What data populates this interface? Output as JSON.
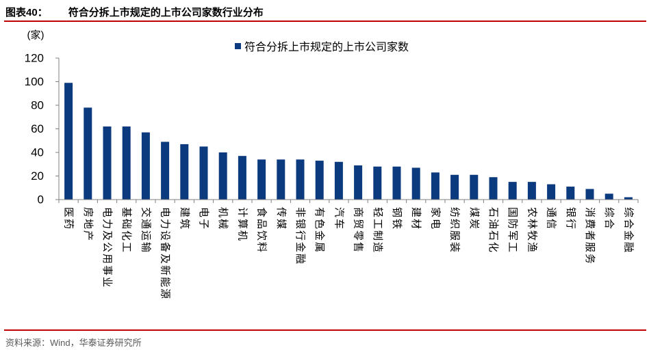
{
  "header": {
    "figure_label": "图表40：",
    "title": "符合分拆上市规定的上市公司家数行业分布"
  },
  "footer": {
    "source": "资料来源：Wind，华泰证券研究所"
  },
  "colors": {
    "bar": "#0b3a7e",
    "rule": "#c00000",
    "axis": "#7f7f7f",
    "source_text": "#595959"
  },
  "chart_data": {
    "type": "bar",
    "ylabel": "(家)",
    "xlabel": "",
    "ylim": [
      0,
      120
    ],
    "yticks": [
      0,
      20,
      40,
      60,
      80,
      100,
      120
    ],
    "grid": false,
    "legend_position": "top-center",
    "categories": [
      "医药",
      "房地产",
      "电力及公用事业",
      "基础化工",
      "交通运输",
      "电力设备及新能源",
      "建筑",
      "电子",
      "机械",
      "计算机",
      "食品饮料",
      "传媒",
      "非银行金融",
      "有色金属",
      "汽车",
      "商贸零售",
      "轻工制造",
      "钢铁",
      "建材",
      "家电",
      "纺织服装",
      "煤炭",
      "石油石化",
      "国防军工",
      "农林牧渔",
      "通信",
      "银行",
      "消费者服务",
      "综合",
      "综合金融"
    ],
    "series": [
      {
        "name": "符合分拆上市规定的上市公司家数",
        "values": [
          99,
          78,
          62,
          62,
          57,
          49,
          47,
          45,
          40,
          37,
          34,
          34,
          34,
          33,
          32,
          29,
          28,
          28,
          27,
          23,
          21,
          21,
          19,
          15,
          15,
          13,
          11,
          9,
          5,
          2
        ]
      }
    ]
  }
}
